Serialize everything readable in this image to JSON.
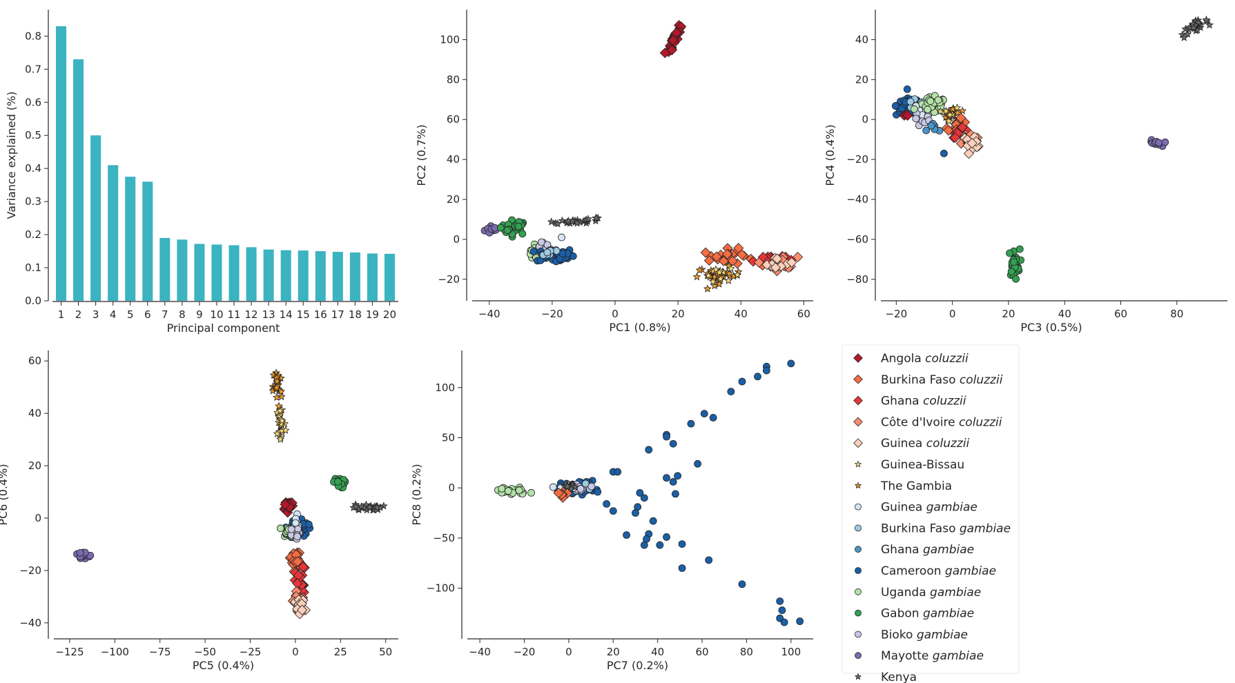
{
  "colors": {
    "bar": "#3bb3c0",
    "Angola coluzzii": "#b2182b",
    "Burkina Faso coluzzii": "#f46d43",
    "Ghana coluzzii": "#e7363a",
    "Côte d'Ivoire coluzzii": "#fc8d6e",
    "Guinea coluzzii": "#fdd0bc",
    "Guinea-Bissau": "#fed976",
    "The Gambia": "#f39a26",
    "Guinea gambiae": "#d6e4f4",
    "Burkina Faso gambiae": "#9ecae1",
    "Ghana gambiae": "#4c94c7",
    "Cameroon gambiae": "#1b5fa5",
    "Uganda gambiae": "#b4e2a6",
    "Gabon gambiae": "#34a052",
    "Bioko gambiae": "#c8c8e6",
    "Mayotte gambiae": "#7b6bb0",
    "Kenya": "#6b6b6b"
  },
  "legend": [
    {
      "country": "Angola",
      "species": "coluzzii",
      "marker": "diamond"
    },
    {
      "country": "Burkina Faso",
      "species": "coluzzii",
      "marker": "diamond"
    },
    {
      "country": "Ghana",
      "species": "coluzzii",
      "marker": "diamond"
    },
    {
      "country": "Côte d'Ivoire",
      "species": "coluzzii",
      "marker": "diamond"
    },
    {
      "country": "Guinea",
      "species": "coluzzii",
      "marker": "diamond"
    },
    {
      "country": "Guinea-Bissau",
      "species": "",
      "marker": "star"
    },
    {
      "country": "The Gambia",
      "species": "",
      "marker": "star"
    },
    {
      "country": "Guinea",
      "species": "gambiae",
      "marker": "circle"
    },
    {
      "country": "Burkina Faso",
      "species": "gambiae",
      "marker": "circle"
    },
    {
      "country": "Ghana",
      "species": "gambiae",
      "marker": "circle"
    },
    {
      "country": "Cameroon",
      "species": "gambiae",
      "marker": "circle"
    },
    {
      "country": "Uganda",
      "species": "gambiae",
      "marker": "circle"
    },
    {
      "country": "Gabon",
      "species": "gambiae",
      "marker": "circle"
    },
    {
      "country": "Bioko",
      "species": "gambiae",
      "marker": "circle"
    },
    {
      "country": "Mayotte",
      "species": "gambiae",
      "marker": "circle"
    },
    {
      "country": "Kenya",
      "species": "",
      "marker": "star"
    }
  ],
  "chart_data": [
    {
      "type": "bar",
      "xlabel": "Principal component",
      "ylabel": "Variance explained (%)",
      "ylim": [
        0,
        0.88
      ],
      "yticks": [
        0.0,
        0.1,
        0.2,
        0.3,
        0.4,
        0.5,
        0.6,
        0.7,
        0.8
      ],
      "categories": [
        "1",
        "2",
        "3",
        "4",
        "5",
        "6",
        "7",
        "8",
        "9",
        "10",
        "11",
        "12",
        "13",
        "14",
        "15",
        "16",
        "17",
        "18",
        "19",
        "20"
      ],
      "values": [
        0.83,
        0.73,
        0.5,
        0.41,
        0.375,
        0.36,
        0.19,
        0.185,
        0.172,
        0.17,
        0.168,
        0.162,
        0.155,
        0.153,
        0.152,
        0.15,
        0.148,
        0.146,
        0.143,
        0.142
      ]
    },
    {
      "type": "scatter",
      "xlabel": "PC1 (0.8%)",
      "ylabel": "PC2 (0.7%)",
      "xlim": [
        -45,
        63
      ],
      "ylim": [
        -28,
        115
      ],
      "xticks": [
        -40,
        -20,
        0,
        20,
        40,
        60
      ],
      "yticks": [
        -20,
        0,
        20,
        40,
        60,
        80,
        100
      ],
      "clusters": [
        {
          "group": "Mayotte gambiae",
          "cx": -39,
          "cy": 5,
          "n": 12,
          "sx": 1.2,
          "sy": 1.2
        },
        {
          "group": "Gabon gambiae",
          "cx": -32,
          "cy": 6,
          "n": 25,
          "sx": 2.2,
          "sy": 1.8
        },
        {
          "group": "Kenya",
          "cx": -12,
          "cy": 9,
          "n": 25,
          "sx": 4,
          "sy": 1.2,
          "tilt": 0.4
        },
        {
          "group": "Uganda gambiae",
          "cx": -24,
          "cy": -7,
          "n": 30,
          "sx": 2.6,
          "sy": 1.8
        },
        {
          "group": "Bioko gambiae",
          "cx": -22,
          "cy": -4,
          "n": 8,
          "sx": 1.2,
          "sy": 1.2
        },
        {
          "group": "Guinea gambiae",
          "cx": -17,
          "cy": 1,
          "n": 1,
          "sx": 0,
          "sy": 0
        },
        {
          "group": "Cameroon gambiae",
          "cx": -19,
          "cy": -8,
          "n": 40,
          "sx": 3,
          "sy": 1.8
        },
        {
          "group": "Burkina Faso gambiae",
          "cx": -21,
          "cy": -6,
          "n": 10,
          "sx": 2,
          "sy": 1.5
        },
        {
          "group": "Angola coluzzii",
          "cx": 19,
          "cy": 101,
          "n": 40,
          "sx": 0.9,
          "sy": 3,
          "tilt": 0.9
        },
        {
          "group": "Burkina Faso coluzzii",
          "cx": 36,
          "cy": -9,
          "n": 25,
          "sx": 4,
          "sy": 2
        },
        {
          "group": "Ghana coluzzii",
          "cx": 49,
          "cy": -10,
          "n": 15,
          "sx": 2.5,
          "sy": 1.5
        },
        {
          "group": "Côte d'Ivoire coluzzii",
          "cx": 53,
          "cy": -12,
          "n": 15,
          "sx": 2.5,
          "sy": 1.8
        },
        {
          "group": "Guinea coluzzii",
          "cx": 52,
          "cy": -12,
          "n": 10,
          "sx": 2.5,
          "sy": 1.5
        },
        {
          "group": "The Gambia",
          "cx": 33,
          "cy": -18,
          "n": 30,
          "sx": 3.5,
          "sy": 2
        },
        {
          "group": "Guinea-Bissau",
          "cx": 34,
          "cy": -18,
          "n": 12,
          "sx": 3,
          "sy": 1.5
        }
      ]
    },
    {
      "type": "scatter",
      "xlabel": "PC3 (0.5%)",
      "ylabel": "PC4 (0.4%)",
      "xlim": [
        -25,
        98
      ],
      "ylim": [
        -88,
        55
      ],
      "xticks": [
        -20,
        0,
        20,
        40,
        60,
        80
      ],
      "yticks": [
        -80,
        -60,
        -40,
        -20,
        0,
        20,
        40
      ],
      "clusters": [
        {
          "group": "Kenya",
          "cx": 86,
          "cy": 46,
          "n": 30,
          "sx": 2.5,
          "sy": 2.5,
          "tilt": 0.8
        },
        {
          "group": "Cameroon gambiae",
          "cx": -15,
          "cy": 7,
          "n": 50,
          "sx": 2.5,
          "sy": 2.5
        },
        {
          "group": "Burkina Faso gambiae",
          "cx": -13,
          "cy": 6,
          "n": 12,
          "sx": 2,
          "sy": 2
        },
        {
          "group": "Guinea gambiae",
          "cx": -12,
          "cy": 3,
          "n": 10,
          "sx": 2,
          "sy": 2
        },
        {
          "group": "Bioko gambiae",
          "cx": -10,
          "cy": 0,
          "n": 8,
          "sx": 2,
          "sy": 2
        },
        {
          "group": "Uganda gambiae",
          "cx": -7,
          "cy": 7,
          "n": 30,
          "sx": 2.5,
          "sy": 2
        },
        {
          "group": "Ghana gambiae",
          "cx": -6,
          "cy": -4,
          "n": 6,
          "sx": 1.5,
          "sy": 1.5
        },
        {
          "group": "Cameroon gambiae",
          "cx": -3,
          "cy": -17,
          "n": 1,
          "sx": 0,
          "sy": 0
        },
        {
          "group": "The Gambia",
          "cx": 0,
          "cy": 3,
          "n": 20,
          "sx": 1.5,
          "sy": 2
        },
        {
          "group": "Guinea-Bissau",
          "cx": 0,
          "cy": 2,
          "n": 8,
          "sx": 1.5,
          "sy": 2
        },
        {
          "group": "Burkina Faso coluzzii",
          "cx": 2,
          "cy": -4,
          "n": 20,
          "sx": 1.8,
          "sy": 2
        },
        {
          "group": "Ghana coluzzii",
          "cx": 3,
          "cy": -6,
          "n": 10,
          "sx": 1.5,
          "sy": 1.5
        },
        {
          "group": "Côte d'Ivoire coluzzii",
          "cx": 6,
          "cy": -10,
          "n": 15,
          "sx": 2,
          "sy": 1.5
        },
        {
          "group": "Guinea coluzzii",
          "cx": 7,
          "cy": -11,
          "n": 10,
          "sx": 2,
          "sy": 1.5
        },
        {
          "group": "Angola coluzzii",
          "cx": -16,
          "cy": 2,
          "n": 3,
          "sx": 0.5,
          "sy": 0.5
        },
        {
          "group": "Mayotte gambiae",
          "cx": 72,
          "cy": -12,
          "n": 12,
          "sx": 1.2,
          "sy": 0.8
        },
        {
          "group": "Gabon gambiae",
          "cx": 22,
          "cy": -72,
          "n": 30,
          "sx": 1,
          "sy": 3.5
        }
      ]
    },
    {
      "type": "scatter",
      "xlabel": "PC5 (0.4%)",
      "ylabel": "PC6 (0.4%)",
      "xlim": [
        -133,
        57
      ],
      "ylim": [
        -44,
        64
      ],
      "xticks": [
        -125,
        -100,
        -75,
        -50,
        -25,
        0,
        25,
        50
      ],
      "yticks": [
        -40,
        -20,
        0,
        20,
        40,
        60
      ],
      "clusters": [
        {
          "group": "Mayotte gambiae",
          "cx": -118,
          "cy": -14.5,
          "n": 15,
          "sx": 3,
          "sy": 0.8
        },
        {
          "group": "The Gambia",
          "cx": -10,
          "cy": 50,
          "n": 30,
          "sx": 1.2,
          "sy": 4
        },
        {
          "group": "Guinea-Bissau",
          "cx": -8,
          "cy": 36,
          "n": 25,
          "sx": 1.2,
          "sy": 4
        },
        {
          "group": "Angola coluzzii",
          "cx": -4,
          "cy": 5,
          "n": 25,
          "sx": 1.5,
          "sy": 1
        },
        {
          "group": "Cameroon gambiae",
          "cx": 2,
          "cy": -4,
          "n": 50,
          "sx": 2.5,
          "sy": 2
        },
        {
          "group": "Uganda gambiae",
          "cx": -3,
          "cy": -5,
          "n": 30,
          "sx": 2,
          "sy": 1
        },
        {
          "group": "Guinea gambiae",
          "cx": 0,
          "cy": -2,
          "n": 10,
          "sx": 1.5,
          "sy": 1.5
        },
        {
          "group": "Bioko gambiae",
          "cx": -1,
          "cy": -6,
          "n": 8,
          "sx": 1.5,
          "sy": 1
        },
        {
          "group": "Gabon gambiae",
          "cx": 24,
          "cy": 13.5,
          "n": 25,
          "sx": 1.5,
          "sy": 1
        },
        {
          "group": "Kenya",
          "cx": 40,
          "cy": 4,
          "n": 25,
          "sx": 4,
          "sy": 0.6
        },
        {
          "group": "Burkina Faso coluzzii",
          "cx": 0,
          "cy": -16,
          "n": 20,
          "sx": 1.5,
          "sy": 2
        },
        {
          "group": "Ghana coluzzii",
          "cx": 3,
          "cy": -25,
          "n": 20,
          "sx": 1.5,
          "sy": 3
        },
        {
          "group": "Côte d'Ivoire coluzzii",
          "cx": 2,
          "cy": -32,
          "n": 15,
          "sx": 1.5,
          "sy": 2.5
        },
        {
          "group": "Guinea coluzzii",
          "cx": 3,
          "cy": -35,
          "n": 15,
          "sx": 1.5,
          "sy": 2
        }
      ]
    },
    {
      "type": "scatter",
      "xlabel": "PC7 (0.2%)",
      "ylabel": "PC8 (0.2%)",
      "xlim": [
        -45,
        110
      ],
      "ylim": [
        -145,
        137
      ],
      "xticks": [
        -40,
        -20,
        0,
        20,
        40,
        60,
        80,
        100
      ],
      "yticks": [
        -100,
        -50,
        0,
        50,
        100
      ],
      "clusters": [
        {
          "group": "Uganda gambiae",
          "cx": -26,
          "cy": -3,
          "n": 30,
          "sx": 4,
          "sy": 2
        },
        {
          "group": "Cameroon gambiae",
          "cx": 4,
          "cy": 1,
          "n": 45,
          "sx": 4,
          "sy": 3
        },
        {
          "group": "Burkina Faso gambiae",
          "cx": 3,
          "cy": 1,
          "n": 10,
          "sx": 3,
          "sy": 2
        },
        {
          "group": "Bioko gambiae",
          "cx": 5,
          "cy": -1,
          "n": 8,
          "sx": 2,
          "sy": 2
        },
        {
          "group": "Guinea gambiae",
          "cx": -1,
          "cy": 0,
          "n": 8,
          "sx": 2,
          "sy": 2
        },
        {
          "group": "Kenya",
          "cx": 0,
          "cy": 2,
          "n": 12,
          "sx": 3,
          "sy": 1.5
        },
        {
          "group": "Burkina Faso coluzzii",
          "cx": -2,
          "cy": -5,
          "n": 6,
          "sx": 1.5,
          "sy": 1.5
        }
      ],
      "points": [
        {
          "group": "Cameroon gambiae",
          "xy": [
            [
              100,
              124
            ],
            [
              89,
              121
            ],
            [
              89,
              117
            ],
            [
              85,
              111
            ],
            [
              78,
              106
            ],
            [
              73,
              96
            ],
            [
              61,
              74
            ],
            [
              65,
              70
            ],
            [
              55,
              64
            ],
            [
              44,
              53
            ],
            [
              44,
              51
            ],
            [
              47,
              44
            ],
            [
              36,
              38
            ],
            [
              58,
              24
            ],
            [
              44,
              10
            ],
            [
              49,
              12
            ],
            [
              47,
              6
            ],
            [
              48,
              -6
            ],
            [
              20,
              16
            ],
            [
              22,
              16
            ],
            [
              13,
              -4
            ],
            [
              17,
              -16
            ],
            [
              20,
              -23
            ],
            [
              32,
              -5
            ],
            [
              34,
              -10
            ],
            [
              31,
              -19
            ],
            [
              30,
              -25
            ],
            [
              38,
              -33
            ],
            [
              26,
              -47
            ],
            [
              36,
              -46
            ],
            [
              35,
              -51
            ],
            [
              44,
              -49
            ],
            [
              51,
              -56
            ],
            [
              34,
              -57
            ],
            [
              41,
              -57
            ],
            [
              63,
              -72
            ],
            [
              51,
              -80
            ],
            [
              78,
              -96
            ],
            [
              95,
              -113
            ],
            [
              96,
              -122
            ],
            [
              95,
              -130
            ],
            [
              97,
              -134
            ],
            [
              104,
              -133
            ]
          ]
        }
      ]
    }
  ]
}
